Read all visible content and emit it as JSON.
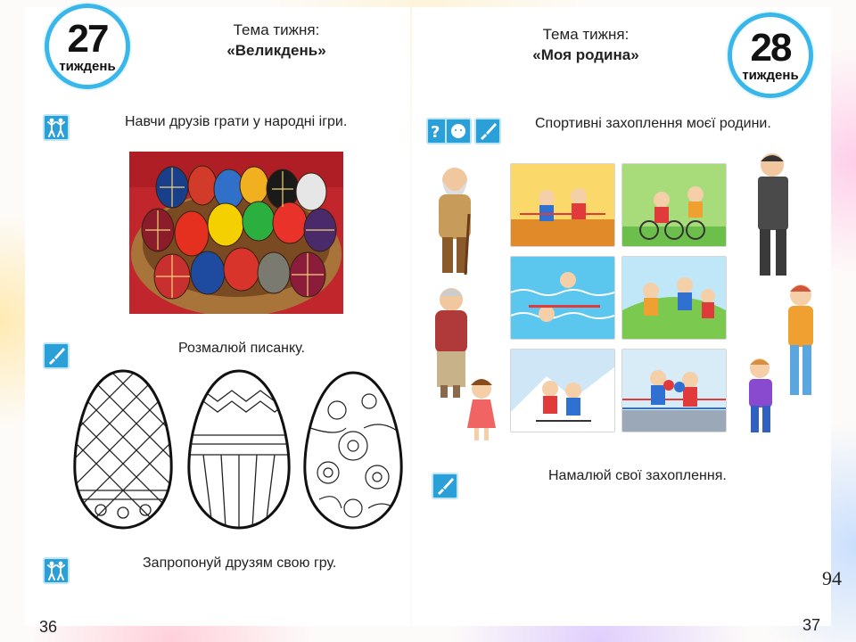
{
  "left_page": {
    "week": {
      "number": "27",
      "label": "тиждень"
    },
    "theme": {
      "title": "Тема тижня:",
      "name": "«Великдень»"
    },
    "tasks": [
      {
        "icon": "children-play-icon",
        "text": "Навчи друзів грати у народні ігри."
      },
      {
        "icon": "brush-icon",
        "text": "Розмалюй писанку."
      },
      {
        "icon": "children-play-icon",
        "text": "Запропонуй друзям свою гру."
      }
    ],
    "page_number": "36"
  },
  "right_page": {
    "week": {
      "number": "28",
      "label": "тиждень"
    },
    "theme": {
      "title": "Тема тижня:",
      "name": "«Моя родина»"
    },
    "tasks": [
      {
        "icon": "question-face-icon",
        "text": "Спортивні захоплення моєї родини."
      },
      {
        "icon": "brush-icon",
        "text": "Намалюй свої захоплення."
      }
    ],
    "page_number": "37"
  },
  "slide_number": "94",
  "colors": {
    "badge_ring": "#39b7ea",
    "icon_bg": "#2a9fd8"
  }
}
